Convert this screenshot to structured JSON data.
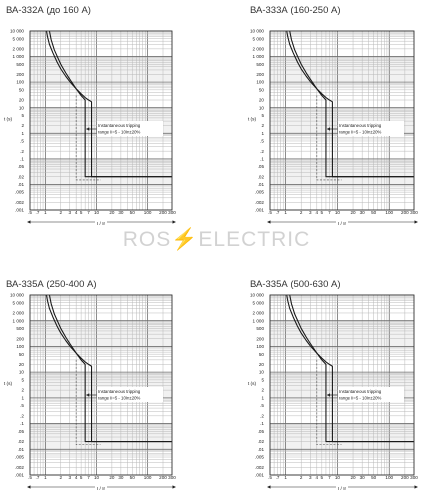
{
  "watermark": {
    "prefix": "ROS",
    "bolt": "⚡",
    "suffix": "ELECTRIC"
  },
  "chart_data": [
    {
      "type": "line",
      "title": "ВА-332А (до 160 А)",
      "xlabel": "I / Ir",
      "ylabel": "t (s)",
      "x_scale": "log",
      "y_scale": "log",
      "xlim": [
        0.5,
        300
      ],
      "ylim": [
        0.001,
        10000
      ],
      "x_ticks": [
        0.5,
        0.7,
        1,
        2,
        3,
        4,
        5,
        7,
        10,
        20,
        30,
        50,
        100,
        200,
        300
      ],
      "x_tick_labels": [
        ".5",
        ".7",
        "1",
        "2",
        "3",
        "4",
        "5",
        "7",
        "10",
        "20",
        "30",
        "50",
        "100",
        "200",
        "300"
      ],
      "y_ticks": [
        10000,
        5000,
        2000,
        1000,
        500,
        200,
        100,
        50,
        20,
        10,
        5,
        2,
        1,
        0.5,
        0.2,
        0.1,
        0.05,
        0.02,
        0.01,
        0.005,
        0.002,
        0.001
      ],
      "y_tick_labels": [
        "10 000",
        "5 000",
        "2 000",
        "1 000",
        "500",
        "200",
        "100",
        "50",
        "20",
        "10",
        "5",
        "2",
        "1",
        ".5",
        ".2",
        ".1",
        ".05",
        ".02",
        ".01",
        ".005",
        ".002",
        ".001"
      ],
      "grid": true,
      "annotation": [
        "Instantaneous tripping",
        "range Ii=5 - 10In±20%"
      ],
      "series": [
        {
          "x": [
            1.05,
            1.1,
            1.2,
            1.4,
            1.7,
            2,
            2.5,
            3,
            4,
            5,
            6,
            7,
            8,
            8,
            8,
            300
          ],
          "y": [
            10000,
            6000,
            3000,
            1400,
            600,
            330,
            170,
            105,
            55,
            35,
            25,
            20,
            17,
            0.02,
            0.02,
            0.02
          ]
        },
        {
          "x": [
            1.2,
            1.3,
            1.5,
            1.8,
            2,
            2.5,
            3,
            4,
            5,
            6,
            6,
            300
          ],
          "y": [
            10000,
            4500,
            1800,
            800,
            500,
            230,
            130,
            55,
            30,
            20,
            0.02,
            0.02
          ]
        }
      ],
      "instantaneous_band": [
        4,
        12
      ]
    },
    {
      "type": "line",
      "title": "ВА-333А (160-250 А)",
      "xlabel": "I / Ir",
      "ylabel": "t (s)",
      "x_scale": "log",
      "y_scale": "log",
      "xlim": [
        0.5,
        300
      ],
      "ylim": [
        0.001,
        10000
      ],
      "x_ticks": [
        0.5,
        0.7,
        1,
        2,
        3,
        4,
        5,
        7,
        10,
        20,
        30,
        50,
        100,
        200,
        300
      ],
      "x_tick_labels": [
        ".5",
        ".7",
        "1",
        "2",
        "3",
        "4",
        "5",
        "7",
        "10",
        "20",
        "30",
        "50",
        "100",
        "200",
        "300"
      ],
      "y_ticks": [
        10000,
        5000,
        2000,
        1000,
        500,
        200,
        100,
        50,
        20,
        10,
        5,
        2,
        1,
        0.5,
        0.2,
        0.1,
        0.05,
        0.02,
        0.01,
        0.005,
        0.002,
        0.001
      ],
      "y_tick_labels": [
        "10 000",
        "5 000",
        "2 000",
        "1 000",
        "500",
        "200",
        "100",
        "50",
        "20",
        "10",
        "5",
        "2",
        "1",
        ".5",
        ".2",
        ".1",
        ".05",
        ".02",
        ".01",
        ".005",
        ".002",
        ".001"
      ],
      "grid": true,
      "annotation": [
        "Instantaneous tripping",
        "range Ii=5 - 10In±20%"
      ],
      "series": [
        {
          "x": [
            1.05,
            1.1,
            1.2,
            1.4,
            1.7,
            2,
            2.5,
            3,
            4,
            5,
            6,
            7,
            8,
            8,
            8,
            300
          ],
          "y": [
            10000,
            6000,
            3000,
            1400,
            600,
            330,
            170,
            105,
            55,
            35,
            25,
            20,
            17,
            0.02,
            0.02,
            0.02
          ]
        },
        {
          "x": [
            1.2,
            1.3,
            1.5,
            1.8,
            2,
            2.5,
            3,
            4,
            5,
            6,
            6,
            300
          ],
          "y": [
            10000,
            4500,
            1800,
            800,
            500,
            230,
            130,
            55,
            30,
            20,
            0.02,
            0.02
          ]
        }
      ],
      "instantaneous_band": [
        4,
        12
      ]
    },
    {
      "type": "line",
      "title": "ВА-335А (250-400 А)",
      "xlabel": "I / Ir",
      "ylabel": "t (s)",
      "x_scale": "log",
      "y_scale": "log",
      "xlim": [
        0.5,
        300
      ],
      "ylim": [
        0.001,
        10000
      ],
      "x_ticks": [
        0.5,
        0.7,
        1,
        2,
        3,
        4,
        5,
        7,
        10,
        20,
        30,
        50,
        100,
        200,
        300
      ],
      "x_tick_labels": [
        ".5",
        ".7",
        "1",
        "2",
        "3",
        "4",
        "5",
        "7",
        "10",
        "20",
        "30",
        "50",
        "100",
        "200",
        "300"
      ],
      "y_ticks": [
        10000,
        5000,
        2000,
        1000,
        500,
        200,
        100,
        50,
        20,
        10,
        5,
        2,
        1,
        0.5,
        0.2,
        0.1,
        0.05,
        0.02,
        0.01,
        0.005,
        0.002,
        0.001
      ],
      "y_tick_labels": [
        "10 000",
        "5 000",
        "2 000",
        "1 000",
        "500",
        "200",
        "100",
        "50",
        "20",
        "10",
        "5",
        "2",
        "1",
        ".5",
        ".2",
        ".1",
        ".05",
        ".02",
        ".01",
        ".005",
        ".002",
        ".001"
      ],
      "grid": true,
      "annotation": [
        "Instantaneous tripping",
        "range Ii=5 - 10In±20%"
      ],
      "series": [
        {
          "x": [
            1.05,
            1.1,
            1.2,
            1.4,
            1.7,
            2,
            2.5,
            3,
            4,
            5,
            6,
            7,
            8,
            8,
            8,
            300
          ],
          "y": [
            10000,
            6000,
            3000,
            1400,
            600,
            330,
            170,
            105,
            55,
            35,
            25,
            20,
            17,
            0.02,
            0.02,
            0.02
          ]
        },
        {
          "x": [
            1.2,
            1.3,
            1.5,
            1.8,
            2,
            2.5,
            3,
            4,
            5,
            6,
            6,
            300
          ],
          "y": [
            10000,
            4500,
            1800,
            800,
            500,
            230,
            130,
            55,
            30,
            20,
            0.02,
            0.02
          ]
        }
      ],
      "instantaneous_band": [
        4,
        12
      ]
    },
    {
      "type": "line",
      "title": "ВА-335А (500-630 А)",
      "xlabel": "I / Ir",
      "ylabel": "t (s)",
      "x_scale": "log",
      "y_scale": "log",
      "xlim": [
        0.5,
        300
      ],
      "ylim": [
        0.001,
        10000
      ],
      "x_ticks": [
        0.5,
        0.7,
        1,
        2,
        3,
        4,
        5,
        7,
        10,
        20,
        30,
        50,
        100,
        200,
        300
      ],
      "x_tick_labels": [
        ".5",
        ".7",
        "1",
        "2",
        "3",
        "4",
        "5",
        "7",
        "10",
        "20",
        "30",
        "50",
        "100",
        "200",
        "300"
      ],
      "y_ticks": [
        10000,
        5000,
        2000,
        1000,
        500,
        200,
        100,
        50,
        20,
        10,
        5,
        2,
        1,
        0.5,
        0.2,
        0.1,
        0.05,
        0.02,
        0.01,
        0.005,
        0.002,
        0.001
      ],
      "y_tick_labels": [
        "10 000",
        "5 000",
        "2 000",
        "1 000",
        "500",
        "200",
        "100",
        "50",
        "20",
        "10",
        "5",
        "2",
        "1",
        ".5",
        ".2",
        ".1",
        ".05",
        ".02",
        ".01",
        ".005",
        ".002",
        ".001"
      ],
      "grid": true,
      "annotation": [
        "Instantaneous tripping",
        "range Ii=5 - 10In±20%"
      ],
      "series": [
        {
          "x": [
            1.05,
            1.1,
            1.2,
            1.4,
            1.7,
            2,
            2.5,
            3,
            4,
            5,
            6,
            7,
            8,
            8,
            8,
            300
          ],
          "y": [
            10000,
            6000,
            3000,
            1400,
            600,
            330,
            170,
            105,
            55,
            35,
            25,
            20,
            17,
            0.02,
            0.02,
            0.02
          ]
        },
        {
          "x": [
            1.2,
            1.3,
            1.5,
            1.8,
            2,
            2.5,
            3,
            4,
            5,
            6,
            6,
            300
          ],
          "y": [
            10000,
            4500,
            1800,
            800,
            500,
            230,
            130,
            55,
            30,
            20,
            0.02,
            0.02
          ]
        }
      ],
      "instantaneous_band": [
        4,
        12
      ]
    }
  ]
}
